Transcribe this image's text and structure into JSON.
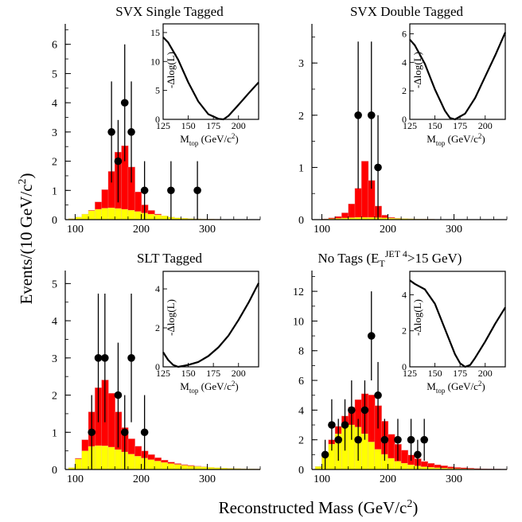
{
  "figure": {
    "ylabel": "Events/(10 GeV/c",
    "ylabel_sup": "2",
    "ylabel_close": ")",
    "xlabel": "Reconstructed Mass (GeV/c",
    "xlabel_sup": "2",
    "xlabel_close": ")",
    "inset_xlabel_main": "M",
    "inset_xlabel_sub": "top",
    "inset_xlabel_rest": " (GeV/c",
    "inset_xlabel_sup": "2",
    "inset_xlabel_close": ")",
    "inset_ylabel": "-Δlog(L)"
  },
  "colors": {
    "signal_background": "#ff0000",
    "background": "#ffff00",
    "data": "#000000"
  },
  "chart_data": [
    {
      "type": "bar",
      "title": "SVX Single Tagged",
      "x_range": [
        85,
        380
      ],
      "ylim": [
        0,
        6.7
      ],
      "xticks": [
        100,
        200,
        300
      ],
      "yticks": [
        0,
        1,
        2,
        3,
        4,
        5,
        6
      ],
      "data_points": [
        {
          "x": 155,
          "y": 3,
          "err": 1.73
        },
        {
          "x": 165,
          "y": 2,
          "err": 1.41
        },
        {
          "x": 175,
          "y": 4,
          "err": 2.0
        },
        {
          "x": 185,
          "y": 3,
          "err": 1.73
        },
        {
          "x": 205,
          "y": 1,
          "err": 1.0
        },
        {
          "x": 245,
          "y": 1,
          "err": 1.0
        },
        {
          "x": 285,
          "y": 1,
          "err": 1.0
        }
      ],
      "total_curve": {
        "x": [
          95,
          110,
          125,
          140,
          150,
          160,
          168,
          173,
          180,
          190,
          200,
          220,
          240,
          260,
          290,
          320,
          350,
          380
        ],
        "y": [
          0.03,
          0.12,
          0.32,
          0.75,
          1.3,
          2.0,
          2.5,
          2.62,
          2.3,
          1.3,
          0.6,
          0.22,
          0.1,
          0.05,
          0.02,
          0.01,
          0.0,
          0.0
        ]
      },
      "background_curve": {
        "x": [
          95,
          110,
          125,
          140,
          155,
          170,
          190,
          210,
          240,
          270,
          300,
          340,
          380
        ],
        "y": [
          0.03,
          0.15,
          0.3,
          0.38,
          0.4,
          0.37,
          0.3,
          0.2,
          0.12,
          0.07,
          0.04,
          0.02,
          0.01
        ]
      },
      "inset": {
        "xlim": [
          125,
          220
        ],
        "ylim": [
          0,
          16.5
        ],
        "xticks": [
          125,
          150,
          175,
          200
        ],
        "yticks": [
          0,
          5,
          10,
          15
        ],
        "curve": {
          "x": [
            125,
            130,
            140,
            150,
            160,
            170,
            180,
            185,
            190,
            200,
            210,
            220
          ],
          "y": [
            14.2,
            13.3,
            10.3,
            6.4,
            3.1,
            0.9,
            0.1,
            0.0,
            0.6,
            2.5,
            4.5,
            6.4
          ]
        }
      }
    },
    {
      "type": "bar",
      "title": "SVX Double Tagged",
      "x_range": [
        85,
        380
      ],
      "ylim": [
        0,
        3.75
      ],
      "xticks": [
        100,
        200,
        300
      ],
      "yticks": [
        0,
        1,
        2,
        3
      ],
      "data_points": [
        {
          "x": 155,
          "y": 2,
          "err": 1.41
        },
        {
          "x": 175,
          "y": 2,
          "err": 1.41
        },
        {
          "x": 185,
          "y": 1,
          "err": 1.0
        }
      ],
      "total_curve": {
        "x": [
          95,
          110,
          125,
          135,
          145,
          155,
          160,
          165,
          170,
          175,
          180,
          190,
          200,
          220,
          250,
          300,
          380
        ],
        "y": [
          0.0,
          0.02,
          0.06,
          0.13,
          0.3,
          0.6,
          0.9,
          1.12,
          1.1,
          0.75,
          0.4,
          0.12,
          0.05,
          0.02,
          0.01,
          0.0,
          0.0
        ]
      },
      "background_curve": {
        "x": [
          95,
          120,
          150,
          180,
          220,
          280,
          380
        ],
        "y": [
          0.0,
          0.02,
          0.04,
          0.04,
          0.02,
          0.01,
          0.0
        ]
      },
      "inset": {
        "xlim": [
          125,
          220
        ],
        "ylim": [
          0,
          6.7
        ],
        "xticks": [
          125,
          150,
          175,
          200
        ],
        "yticks": [
          0,
          2,
          4,
          6
        ],
        "curve": {
          "x": [
            125,
            130,
            140,
            150,
            160,
            165,
            170,
            180,
            190,
            200,
            210,
            220
          ],
          "y": [
            5.6,
            5.2,
            3.9,
            2.1,
            0.6,
            0.1,
            0.0,
            0.4,
            1.5,
            3.0,
            4.5,
            6.1
          ]
        }
      }
    },
    {
      "type": "bar",
      "title": "SLT Tagged",
      "x_range": [
        85,
        380
      ],
      "ylim": [
        0,
        5.35
      ],
      "xticks": [
        100,
        200,
        300
      ],
      "yticks": [
        0,
        1,
        2,
        3,
        4,
        5
      ],
      "data_points": [
        {
          "x": 125,
          "y": 1,
          "err": 1.0
        },
        {
          "x": 135,
          "y": 3,
          "err": 1.73
        },
        {
          "x": 145,
          "y": 3,
          "err": 1.73
        },
        {
          "x": 165,
          "y": 2,
          "err": 1.41
        },
        {
          "x": 175,
          "y": 1,
          "err": 1.0
        },
        {
          "x": 185,
          "y": 3,
          "err": 1.73
        },
        {
          "x": 205,
          "y": 1,
          "err": 1.0
        }
      ],
      "total_curve": {
        "x": [
          95,
          105,
          115,
          125,
          135,
          143,
          150,
          160,
          170,
          180,
          190,
          200,
          220,
          240,
          260,
          290,
          320,
          350,
          380
        ],
        "y": [
          0.05,
          0.3,
          0.8,
          1.55,
          2.2,
          2.45,
          2.3,
          1.8,
          1.3,
          0.95,
          0.7,
          0.55,
          0.35,
          0.22,
          0.14,
          0.08,
          0.04,
          0.02,
          0.01
        ]
      },
      "background_curve": {
        "x": [
          95,
          105,
          115,
          125,
          140,
          155,
          170,
          190,
          210,
          240,
          270,
          300,
          340,
          380
        ],
        "y": [
          0.05,
          0.28,
          0.5,
          0.62,
          0.65,
          0.6,
          0.5,
          0.38,
          0.28,
          0.17,
          0.1,
          0.06,
          0.03,
          0.01
        ]
      },
      "inset": {
        "xlim": [
          125,
          220
        ],
        "ylim": [
          0,
          4.9
        ],
        "xticks": [
          125,
          150,
          175,
          200
        ],
        "yticks": [
          0,
          2,
          4
        ],
        "curve": {
          "x": [
            125,
            130,
            135,
            140,
            145,
            150,
            160,
            170,
            180,
            190,
            200,
            210,
            220
          ],
          "y": [
            0.75,
            0.35,
            0.1,
            0.0,
            0.05,
            0.1,
            0.25,
            0.55,
            1.0,
            1.6,
            2.4,
            3.3,
            4.3
          ]
        }
      }
    },
    {
      "type": "bar",
      "title": "No Tags (E",
      "title_sub": "T",
      "title_sup": "JET 4",
      "title_rest": ">15 GeV)",
      "x_range": [
        85,
        380
      ],
      "ylim": [
        0,
        13.4
      ],
      "xticks": [
        100,
        200,
        300
      ],
      "yticks": [
        0,
        2,
        4,
        6,
        8,
        10,
        12
      ],
      "data_points": [
        {
          "x": 105,
          "y": 1,
          "err": 1.0
        },
        {
          "x": 115,
          "y": 3,
          "err": 1.73
        },
        {
          "x": 125,
          "y": 2,
          "err": 1.41
        },
        {
          "x": 135,
          "y": 3,
          "err": 1.73
        },
        {
          "x": 145,
          "y": 4,
          "err": 2.0
        },
        {
          "x": 155,
          "y": 2,
          "err": 1.41
        },
        {
          "x": 165,
          "y": 4,
          "err": 2.0
        },
        {
          "x": 175,
          "y": 9,
          "err": 3.0
        },
        {
          "x": 185,
          "y": 5,
          "err": 2.24
        },
        {
          "x": 195,
          "y": 2,
          "err": 1.41
        },
        {
          "x": 215,
          "y": 2,
          "err": 1.41
        },
        {
          "x": 235,
          "y": 2,
          "err": 1.41
        },
        {
          "x": 245,
          "y": 1,
          "err": 1.0
        },
        {
          "x": 255,
          "y": 2,
          "err": 1.41
        }
      ],
      "total_curve": {
        "x": [
          95,
          105,
          115,
          125,
          135,
          145,
          155,
          165,
          172,
          180,
          190,
          200,
          215,
          230,
          250,
          270,
          300,
          340,
          380
        ],
        "y": [
          0.2,
          1.0,
          2.0,
          2.9,
          3.6,
          4.2,
          4.7,
          5.1,
          5.15,
          4.8,
          3.8,
          2.7,
          1.7,
          1.1,
          0.6,
          0.35,
          0.15,
          0.05,
          0.02
        ]
      },
      "background_curve": {
        "x": [
          95,
          105,
          115,
          125,
          135,
          145,
          155,
          165,
          175,
          185,
          200,
          215,
          230,
          250,
          270,
          300,
          340,
          380
        ],
        "y": [
          0.2,
          0.9,
          1.7,
          2.4,
          2.85,
          3.0,
          2.85,
          2.4,
          1.85,
          1.35,
          0.85,
          0.55,
          0.35,
          0.2,
          0.12,
          0.06,
          0.02,
          0.01
        ]
      },
      "inset": {
        "xlim": [
          125,
          220
        ],
        "ylim": [
          0,
          5.3
        ],
        "xticks": [
          125,
          150,
          175,
          200
        ],
        "yticks": [
          0,
          2,
          4
        ],
        "curve": {
          "x": [
            125,
            130,
            140,
            150,
            160,
            170,
            175,
            180,
            185,
            190,
            200,
            210,
            220
          ],
          "y": [
            4.8,
            4.6,
            4.3,
            3.5,
            2.1,
            0.7,
            0.2,
            0.0,
            0.1,
            0.5,
            1.4,
            2.4,
            3.3
          ]
        }
      }
    }
  ]
}
